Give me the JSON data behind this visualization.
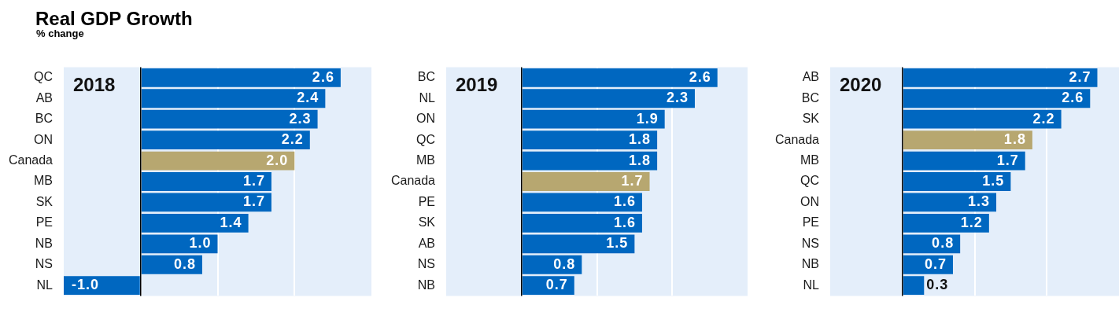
{
  "chart_data": [
    {
      "type": "bar",
      "title": "Real GDP Growth",
      "subtitle": "% change",
      "orientation": "horizontal",
      "categories": [
        "QC",
        "AB",
        "BC",
        "ON",
        "Canada",
        "MB",
        "SK",
        "PE",
        "NB",
        "NS",
        "NL"
      ],
      "values": [
        2.6,
        2.4,
        2.3,
        2.2,
        2.0,
        1.7,
        1.7,
        1.4,
        1.0,
        0.8,
        -1.0
      ],
      "value_labels": [
        "2.6",
        "2.4",
        "2.3",
        "2.2",
        "2.0",
        "1.7",
        "1.7",
        "1.4",
        "1.0",
        "0.8",
        "-1.0"
      ],
      "colors": [
        "#0067c0",
        "#0067c0",
        "#0067c0",
        "#0067c0",
        "#b7a770",
        "#0067c0",
        "#0067c0",
        "#0067c0",
        "#0067c0",
        "#0067c0",
        "#0067c0"
      ],
      "xlim": [
        -1,
        3
      ],
      "xticks": [
        {
          "value": 0,
          "label": null
        },
        {
          "value": 1,
          "label": null
        },
        {
          "value": 2,
          "label": null
        }
      ],
      "grid": "x",
      "tick_labels": "y",
      "annotations": [
        "2018"
      ]
    },
    {
      "type": "bar",
      "orientation": "horizontal",
      "categories": [
        "BC",
        "NL",
        "ON",
        "QC",
        "MB",
        "Canada",
        "PE",
        "SK",
        "AB",
        "NS",
        "NB"
      ],
      "values": [
        2.6,
        2.3,
        1.9,
        1.8,
        1.8,
        1.7,
        1.6,
        1.6,
        1.5,
        0.8,
        0.7
      ],
      "value_labels": [
        "2.6",
        "2.3",
        "1.9",
        "1.8",
        "1.8",
        "1.7",
        "1.6",
        "1.6",
        "1.5",
        "0.8",
        "0.7"
      ],
      "colors": [
        "#0067c0",
        "#0067c0",
        "#0067c0",
        "#0067c0",
        "#0067c0",
        "#b7a770",
        "#0067c0",
        "#0067c0",
        "#0067c0",
        "#0067c0",
        "#0067c0"
      ],
      "xlim": [
        -1,
        3
      ],
      "xticks": [
        {
          "value": 0,
          "label": null
        },
        {
          "value": 1,
          "label": null
        },
        {
          "value": 2,
          "label": null
        }
      ],
      "grid": "x",
      "tick_labels": "y",
      "annotations": [
        "2019"
      ]
    },
    {
      "type": "bar",
      "orientation": "horizontal",
      "categories": [
        "AB",
        "BC",
        "SK",
        "Canada",
        "MB",
        "QC",
        "ON",
        "PE",
        "NS",
        "NB",
        "NL"
      ],
      "values": [
        2.7,
        2.6,
        2.2,
        1.8,
        1.7,
        1.5,
        1.3,
        1.2,
        0.8,
        0.7,
        0.3
      ],
      "value_labels": [
        "2.7",
        "2.6",
        "2.2",
        "1.8",
        "1.7",
        "1.5",
        "1.3",
        "1.2",
        "0.8",
        "0.7",
        "0.3"
      ],
      "colors": [
        "#0067c0",
        "#0067c0",
        "#0067c0",
        "#b7a770",
        "#0067c0",
        "#0067c0",
        "#0067c0",
        "#0067c0",
        "#0067c0",
        "#0067c0",
        "#0067c0"
      ],
      "xlim": [
        -1,
        3
      ],
      "xticks": [
        {
          "value": 0,
          "label": null
        },
        {
          "value": 1,
          "label": null
        },
        {
          "value": 2,
          "label": null
        }
      ],
      "grid": "x",
      "tick_labels": "y",
      "annotations": [
        "2020"
      ]
    }
  ]
}
